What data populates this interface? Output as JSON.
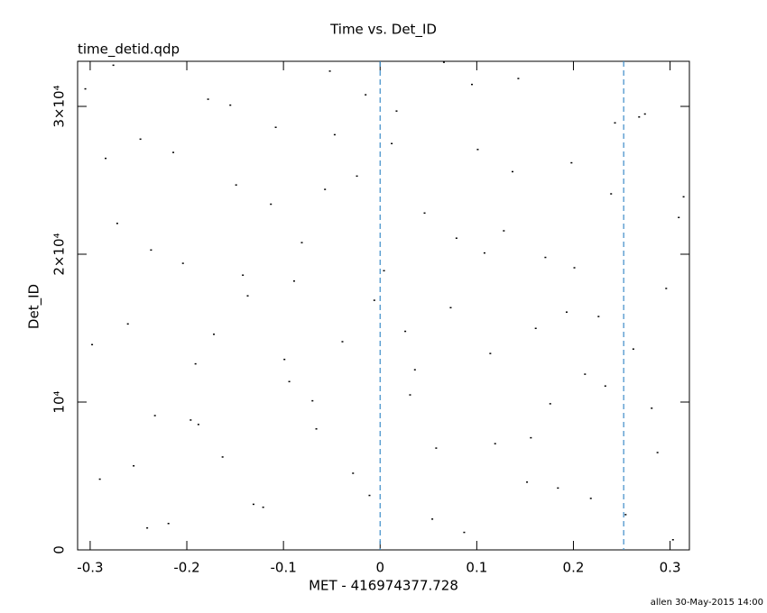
{
  "chart_data": {
    "type": "scatter",
    "title": "Time vs. Det_ID",
    "subtitle": "time_detid.qdp",
    "x_label": "MET - 416974377.728",
    "y_label": "Det_ID",
    "footer": "allen 30-May-2015 14:00",
    "xlim": [
      -0.313,
      0.32
    ],
    "ylim": [
      0,
      33050
    ],
    "xticks": [
      -0.3,
      -0.2,
      -0.1,
      0,
      0.1,
      0.2,
      0.3
    ],
    "yticks": [
      0,
      {
        "value": 10000,
        "label": "10⁴"
      },
      {
        "value": 20000,
        "label": "2×10⁴"
      },
      {
        "value": 30000,
        "label": "3×10⁴"
      }
    ],
    "color": "#000000",
    "vline_color": "#3c8cc8",
    "vlines": [
      0,
      0.252
    ],
    "x": [
      -0.305,
      -0.29,
      -0.272,
      -0.261,
      -0.248,
      -0.233,
      -0.219,
      -0.204,
      -0.191,
      -0.178,
      -0.163,
      -0.149,
      -0.137,
      -0.121,
      -0.108,
      -0.094,
      -0.081,
      -0.066,
      -0.052,
      -0.039,
      -0.024,
      -0.011,
      0.004,
      0.017,
      0.031,
      0.046,
      0.058,
      0.073,
      0.087,
      0.101,
      0.114,
      0.128,
      0.143,
      0.156,
      0.171,
      0.184,
      0.198,
      0.212,
      0.226,
      0.239,
      0.254,
      0.268,
      0.281,
      0.296,
      0.309,
      -0.298,
      -0.276,
      -0.255,
      -0.237,
      -0.214,
      -0.196,
      -0.172,
      -0.155,
      -0.131,
      -0.113,
      -0.089,
      -0.07,
      -0.047,
      -0.028,
      -0.006,
      0.012,
      0.036,
      0.054,
      0.079,
      0.095,
      0.119,
      0.137,
      0.161,
      0.176,
      0.201,
      0.218,
      0.243,
      0.262,
      0.287,
      0.314,
      -0.284,
      -0.241,
      -0.188,
      -0.142,
      -0.099,
      -0.057,
      -0.015,
      0.026,
      0.066,
      0.108,
      0.152,
      0.193,
      0.233,
      0.274,
      0.303
    ],
    "y": [
      31200,
      4800,
      22100,
      15300,
      27800,
      9100,
      1800,
      19400,
      12600,
      30500,
      6300,
      24700,
      17200,
      2900,
      28600,
      11400,
      20800,
      8200,
      32400,
      14100,
      25300,
      3700,
      18900,
      29700,
      10500,
      22800,
      6900,
      16400,
      1200,
      27100,
      13300,
      21600,
      31900,
      7600,
      19800,
      4200,
      26200,
      11900,
      15800,
      24100,
      2400,
      29300,
      9600,
      17700,
      22500,
      13900,
      32800,
      5700,
      20300,
      26900,
      8800,
      14600,
      30100,
      3100,
      23400,
      18200,
      10100,
      28100,
      5200,
      16900,
      27500,
      12200,
      2100,
      21100,
      31500,
      7200,
      25600,
      15000,
      9900,
      19100,
      3500,
      28900,
      13600,
      6600,
      23900,
      26500,
      1500,
      8500,
      18600,
      12900,
      24400,
      30800,
      14800,
      33000,
      20100,
      4600,
      16100,
      11100,
      29500,
      700
    ]
  }
}
